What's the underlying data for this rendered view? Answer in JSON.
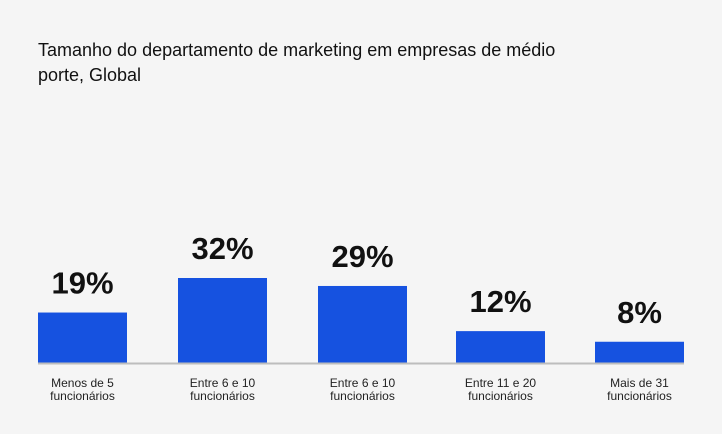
{
  "chart_data": {
    "type": "bar",
    "title": "Tamanho do departamento de marketing em empresas de médio porte, Global",
    "categories": [
      "Menos de 5 funcionários",
      "Entre 6 e 10 funcionários",
      "Entre 6 e 10 funcionários",
      "Entre 11 e 20 funcionários",
      "Mais de 31 funcionários"
    ],
    "category_lines": [
      [
        "Menos de 5",
        "funcionários"
      ],
      [
        "Entre 6 e 10",
        "funcionários"
      ],
      [
        "Entre 6 e 10",
        "funcionários"
      ],
      [
        "Entre 11 e 20",
        "funcionários"
      ],
      [
        "Mais de 31",
        "funcionários"
      ]
    ],
    "values": [
      19,
      32,
      29,
      12,
      8
    ],
    "data_labels": [
      "19%",
      "32%",
      "29%",
      "12%",
      "8%"
    ],
    "unit": "%",
    "xlabel": "",
    "ylabel": "",
    "ylim": [
      0,
      32
    ],
    "grid": false,
    "bar_color": "#1652e0",
    "baseline_color": "#bdbdbd"
  }
}
